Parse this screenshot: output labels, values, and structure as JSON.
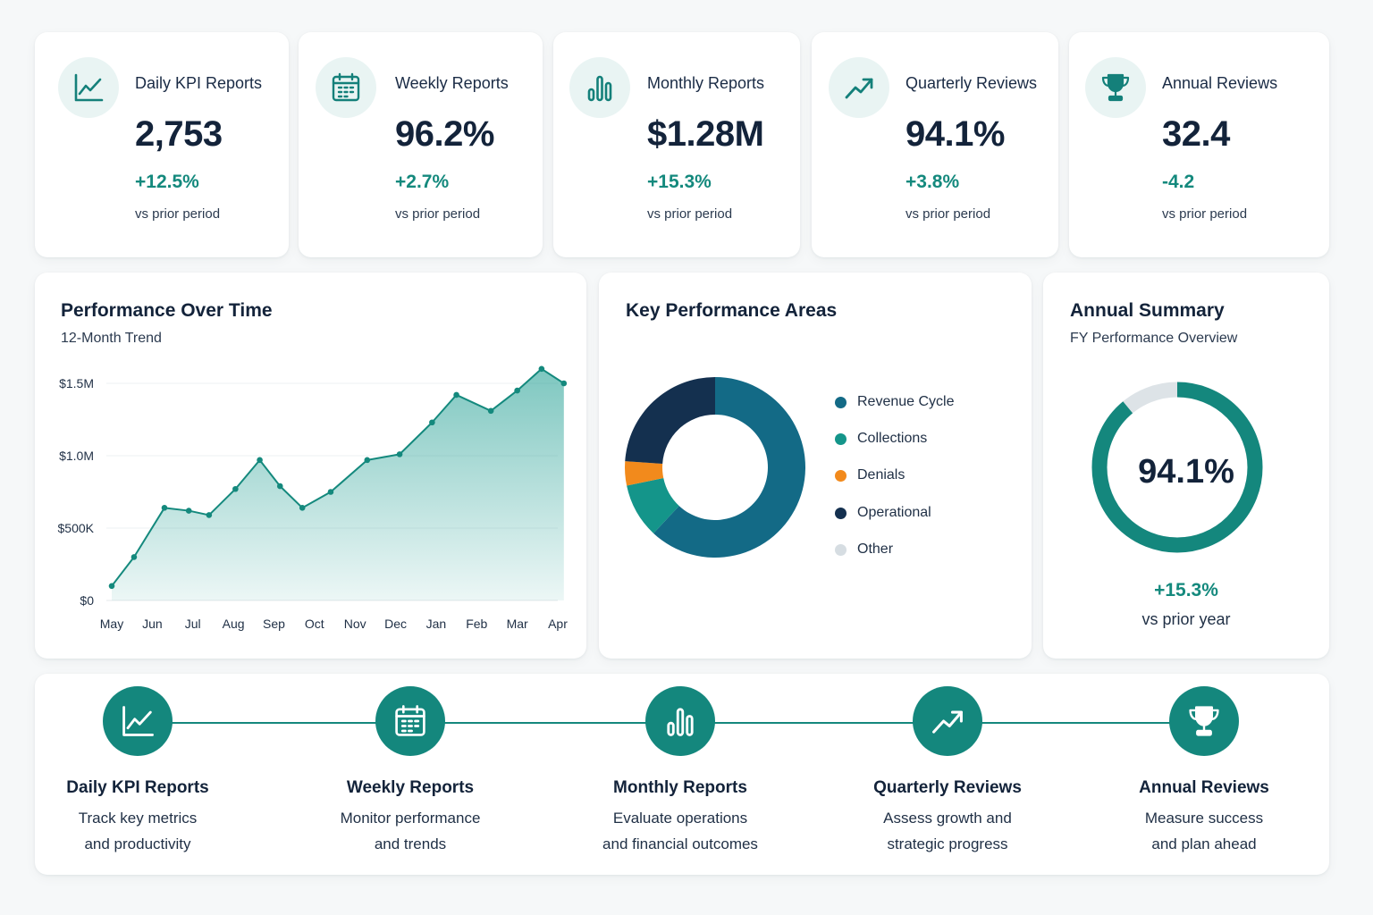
{
  "kpis": [
    {
      "icon": "line-chart-icon",
      "title": "Daily KPI Reports",
      "value": "2,753",
      "change": "+12.5%",
      "sub": "vs prior period"
    },
    {
      "icon": "calendar-icon",
      "title": "Weekly Reports",
      "value": "96.2%",
      "change": "+2.7%",
      "sub": "vs prior period"
    },
    {
      "icon": "bar-chart-icon",
      "title": "Monthly Reports",
      "value": "$1.28M",
      "change": "+15.3%",
      "sub": "vs prior period"
    },
    {
      "icon": "trend-up-icon",
      "title": "Quarterly Reviews",
      "value": "94.1%",
      "change": "+3.8%",
      "sub": "vs prior period"
    },
    {
      "icon": "trophy-icon",
      "title": "Annual Reviews",
      "value": "32.4",
      "change": "-4.2",
      "sub": "vs prior period"
    }
  ],
  "performance": {
    "title": "Performance Over Time",
    "subtitle": "12-Month Trend"
  },
  "chart_data": {
    "type": "area",
    "categories": [
      "May",
      "Jun",
      "Jul",
      "Aug",
      "Sep",
      "Oct",
      "Nov",
      "Dec",
      "Jan",
      "Feb",
      "Mar",
      "Apr"
    ],
    "x": [
      0,
      0.55,
      1.3,
      1.9,
      2.4,
      3.05,
      3.65,
      4.15,
      4.7,
      5.4,
      6.3,
      7.1,
      7.9,
      8.5,
      9.35,
      10.0,
      10.6,
      11.15
    ],
    "values": [
      100000,
      300000,
      640000,
      620000,
      590000,
      770000,
      970000,
      790000,
      640000,
      750000,
      970000,
      1010000,
      1230000,
      1420000,
      1310000,
      1450000,
      1600000,
      1500000
    ],
    "yticks": [
      "$0",
      "$500K",
      "$1.0M",
      "$1.5M"
    ],
    "ytick_values": [
      0,
      500000,
      1000000,
      1500000
    ],
    "ylim": [
      0,
      1500000
    ],
    "grid": true,
    "color": "#14897d"
  },
  "areas": {
    "title": "Key Performance Areas",
    "type": "pie",
    "segments": [
      {
        "name": "Revenue Cycle",
        "color": "#136a86",
        "value": 57
      },
      {
        "name": "Collections",
        "color": "#14958a",
        "value": 9
      },
      {
        "name": "Denials",
        "color": "#f28a1c",
        "value": 4
      },
      {
        "name": "Operational",
        "color": "#14304f",
        "value": 22
      },
      {
        "name": "Other",
        "color": "#d6dde2",
        "value": 0
      }
    ]
  },
  "summary": {
    "title": "Annual Summary",
    "subtitle": "FY Performance Overview",
    "value": "94.1%",
    "percent": 89,
    "change": "+15.3%",
    "sub": "vs prior year",
    "color": "#14877d",
    "track_color": "#dde3e7"
  },
  "steps": [
    {
      "icon": "line-chart-icon",
      "title": "Daily KPI Reports",
      "desc1": "Track key metrics",
      "desc2": "and productivity"
    },
    {
      "icon": "calendar-icon",
      "title": "Weekly Reports",
      "desc1": "Monitor performance",
      "desc2": "and trends"
    },
    {
      "icon": "bar-chart-icon",
      "title": "Monthly Reports",
      "desc1": "Evaluate operations",
      "desc2": "and financial outcomes"
    },
    {
      "icon": "trend-up-icon",
      "title": "Quarterly Reviews",
      "desc1": "Assess growth and",
      "desc2": "strategic progress"
    },
    {
      "icon": "trophy-icon",
      "title": "Annual Reviews",
      "desc1": "Measure success",
      "desc2": "and plan ahead"
    }
  ]
}
